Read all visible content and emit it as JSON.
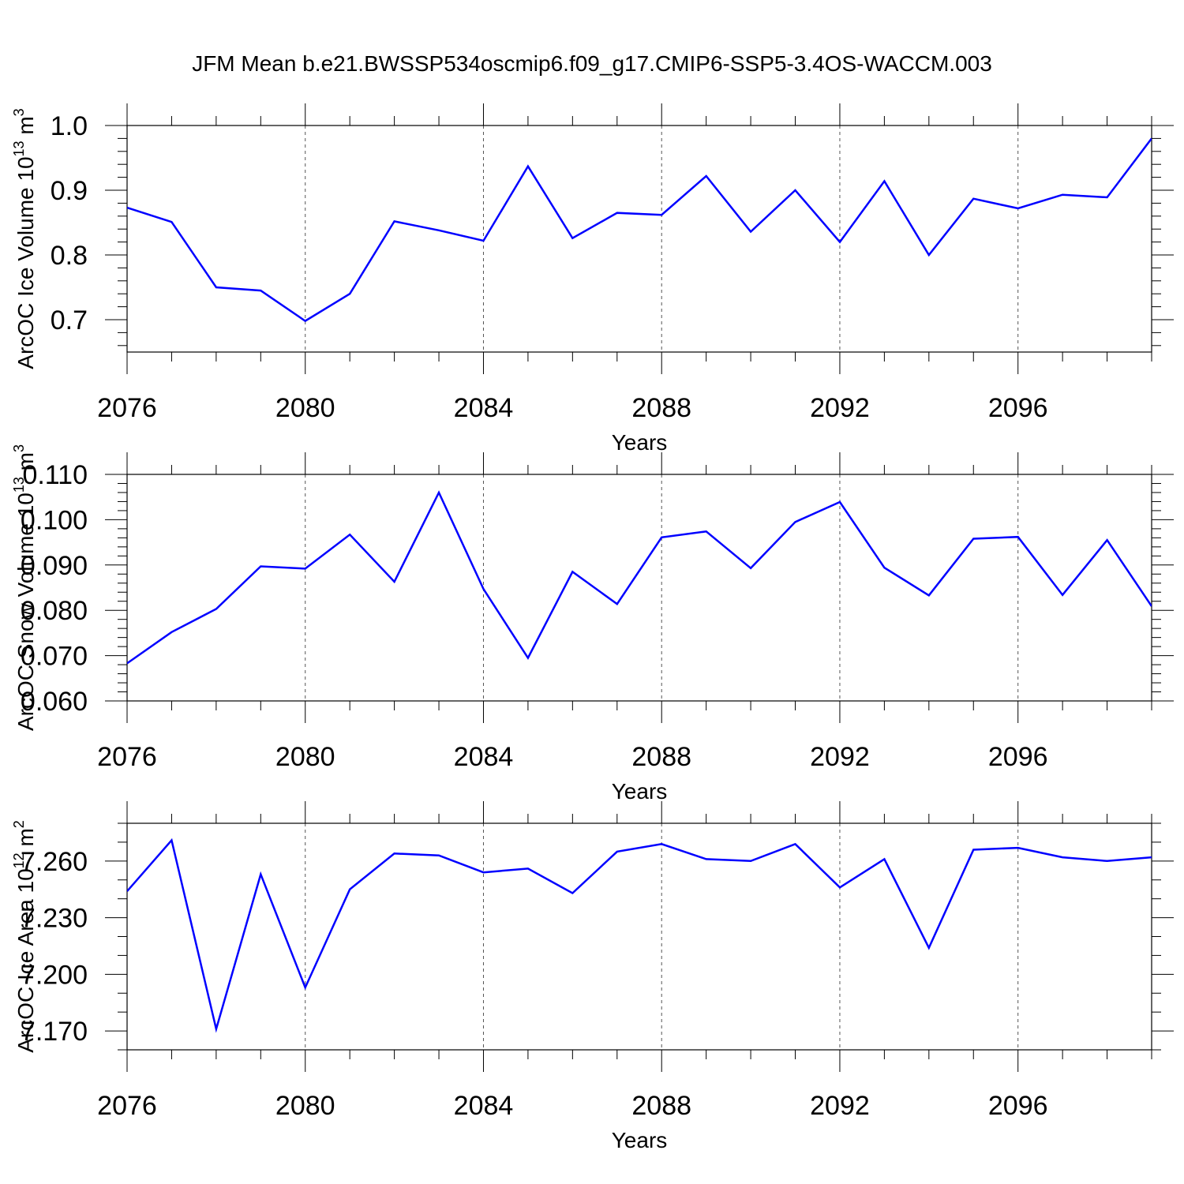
{
  "title": "JFM Mean b.e21.BWSSP534oscmip6.f09_g17.CMIP6-SSP5-3.4OS-WACCM.003",
  "line_color": "#0000ff",
  "chart_data": [
    {
      "type": "line",
      "ylabel": "ArcOC Ice Volume 10",
      "ylabel_exp": "13",
      "ylabel_unit": " m",
      "ylabel_unit_exp": "3",
      "xlabel": "Years",
      "x": [
        2076,
        2077,
        2078,
        2079,
        2080,
        2081,
        2082,
        2083,
        2084,
        2085,
        2086,
        2087,
        2088,
        2089,
        2090,
        2091,
        2092,
        2093,
        2094,
        2095,
        2096,
        2097,
        2098,
        2099
      ],
      "values": [
        0.873,
        0.851,
        0.75,
        0.745,
        0.698,
        0.74,
        0.852,
        0.838,
        0.822,
        0.937,
        0.826,
        0.865,
        0.862,
        0.922,
        0.836,
        0.9,
        0.82,
        0.914,
        0.8,
        0.887,
        0.872,
        0.893,
        0.889,
        0.98
      ],
      "xlim": [
        2076,
        2099
      ],
      "ylim": [
        0.65,
        1.0
      ],
      "xticks": [
        2076,
        2080,
        2084,
        2088,
        2092,
        2096
      ],
      "xtick_labels": [
        "2076",
        "2080",
        "2084",
        "2088",
        "2092",
        "2096"
      ],
      "yticks": [
        0.7,
        0.8,
        0.9,
        1.0
      ],
      "ytick_labels": [
        "0.7",
        "0.8",
        "0.9",
        "1.0"
      ],
      "yminor_step": 0.02
    },
    {
      "type": "line",
      "ylabel": "ArcOC Snow Volume 10",
      "ylabel_exp": "13",
      "ylabel_unit": " m",
      "ylabel_unit_exp": "3",
      "xlabel": "Years",
      "x": [
        2076,
        2077,
        2078,
        2079,
        2080,
        2081,
        2082,
        2083,
        2084,
        2085,
        2086,
        2087,
        2088,
        2089,
        2090,
        2091,
        2092,
        2093,
        2094,
        2095,
        2096,
        2097,
        2098,
        2099
      ],
      "values": [
        0.0683,
        0.0752,
        0.0803,
        0.0897,
        0.0892,
        0.0967,
        0.0863,
        0.106,
        0.0847,
        0.0695,
        0.0885,
        0.0814,
        0.0961,
        0.0974,
        0.0893,
        0.0995,
        0.1039,
        0.0894,
        0.0833,
        0.0958,
        0.0962,
        0.0834,
        0.0955,
        0.0809
      ],
      "xlim": [
        2076,
        2099
      ],
      "ylim": [
        0.06,
        0.11
      ],
      "xticks": [
        2076,
        2080,
        2084,
        2088,
        2092,
        2096
      ],
      "xtick_labels": [
        "2076",
        "2080",
        "2084",
        "2088",
        "2092",
        "2096"
      ],
      "yticks": [
        0.06,
        0.07,
        0.08,
        0.09,
        0.1,
        0.11
      ],
      "ytick_labels": [
        "0.060",
        "0.070",
        "0.080",
        "0.090",
        "0.100",
        "0.110"
      ],
      "yminor_step": 0.002
    },
    {
      "type": "line",
      "ylabel": "ArcOC Ice Area 10",
      "ylabel_exp": "12",
      "ylabel_unit": " m",
      "ylabel_unit_exp": "2",
      "xlabel": "Years",
      "x": [
        2076,
        2077,
        2078,
        2079,
        2080,
        2081,
        2082,
        2083,
        2084,
        2085,
        2086,
        2087,
        2088,
        2089,
        2090,
        2091,
        2092,
        2093,
        2094,
        2095,
        2096,
        2097,
        2098,
        2099
      ],
      "values": [
        7.244,
        7.271,
        7.171,
        7.253,
        7.193,
        7.245,
        7.264,
        7.263,
        7.254,
        7.256,
        7.243,
        7.265,
        7.269,
        7.261,
        7.26,
        7.269,
        7.246,
        7.261,
        7.214,
        7.266,
        7.267,
        7.262,
        7.26,
        7.262
      ],
      "xlim": [
        2076,
        2099
      ],
      "ylim": [
        7.16,
        7.28
      ],
      "xticks": [
        2076,
        2080,
        2084,
        2088,
        2092,
        2096
      ],
      "xtick_labels": [
        "2076",
        "2080",
        "2084",
        "2088",
        "2092",
        "2096"
      ],
      "yticks": [
        7.17,
        7.2,
        7.23,
        7.26
      ],
      "ytick_labels": [
        "7.170",
        "7.200",
        "7.230",
        "7.260"
      ],
      "yminor_step": 0.01
    }
  ]
}
